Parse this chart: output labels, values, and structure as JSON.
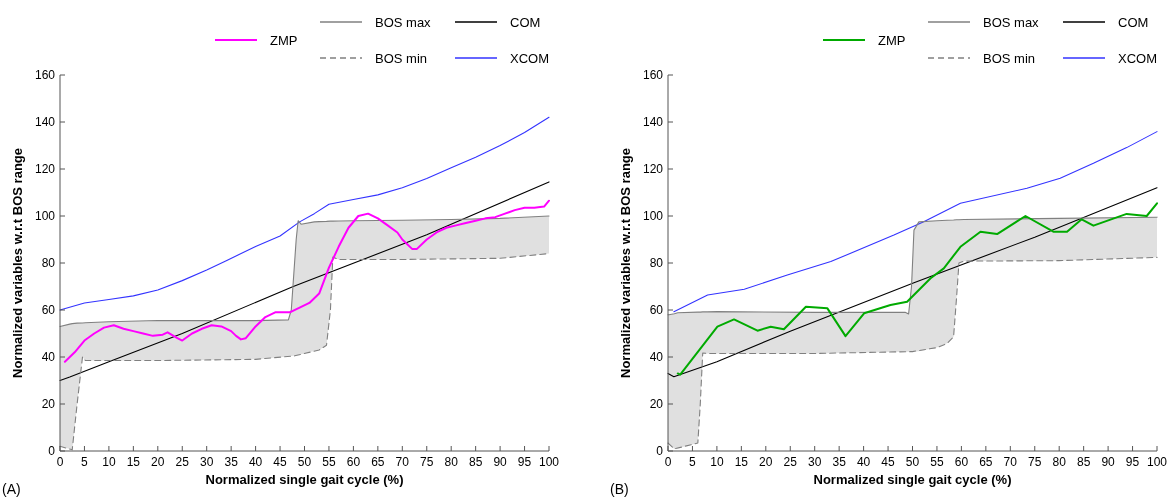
{
  "chart_data": [
    {
      "type": "line",
      "xlabel": "Normalized single gait cycle (%)",
      "ylabel": "Normalized variables w.r.t BOS range",
      "xlim": [
        0,
        100
      ],
      "ylim": [
        0,
        160
      ],
      "xticks": [
        0,
        5,
        10,
        15,
        20,
        25,
        30,
        35,
        40,
        45,
        50,
        55,
        60,
        65,
        70,
        75,
        80,
        85,
        90,
        95,
        100
      ],
      "yticks": [
        0,
        20,
        40,
        60,
        80,
        100,
        120,
        140,
        160
      ],
      "grid": false,
      "legend": "top",
      "annotations": [
        "(A)"
      ],
      "series": [
        {
          "name": "ZMP",
          "color": "#ff00ff",
          "x": [
            1,
            3,
            5,
            7,
            9,
            11,
            13,
            15,
            17,
            19,
            21,
            22,
            24,
            25,
            27,
            29,
            31,
            33,
            35,
            36,
            37,
            38,
            40,
            42,
            44,
            46,
            47,
            49,
            51,
            53,
            55,
            57,
            59,
            61,
            63,
            65,
            67,
            69,
            70,
            72,
            73,
            75,
            77,
            79,
            81,
            83,
            85,
            87,
            89,
            91,
            93,
            95,
            97,
            99,
            100
          ],
          "values": [
            38,
            42,
            47,
            50,
            52.5,
            53.5,
            52,
            51,
            50,
            49,
            49.5,
            50.5,
            48,
            47,
            50,
            52,
            53.5,
            53,
            51,
            49,
            47.5,
            48,
            53,
            57,
            59,
            59,
            59,
            61,
            63,
            67,
            78,
            87,
            95,
            100,
            101,
            99,
            96,
            93,
            90,
            86,
            86,
            90,
            93,
            95,
            96,
            97,
            98,
            99,
            99.5,
            101,
            102.5,
            103.5,
            103.5,
            104,
            106.5
          ]
        },
        {
          "name": "BOS max",
          "color": "#808080",
          "x": [
            0,
            2,
            2.5,
            3.5,
            4.6,
            5.2,
            10,
            20,
            30,
            40,
            46.7,
            47.3,
            48.3,
            48.7,
            49.3,
            52,
            53,
            54.5,
            55.3,
            55.8,
            57,
            60,
            70,
            80,
            90,
            100
          ],
          "values": [
            53,
            54,
            54.2,
            54.4,
            54.5,
            54.6,
            55,
            55.5,
            55.5,
            55.5,
            55.8,
            60,
            90,
            98,
            96.5,
            97.5,
            97.6,
            97.7,
            97.8,
            97.8,
            97.9,
            98,
            98.2,
            98.5,
            99,
            100
          ],
          "upper": [
            53,
            54,
            54.2,
            54.4,
            54.5,
            54.6,
            55,
            55.5,
            55.5,
            55.5,
            55.8,
            60,
            90,
            98,
            96.5,
            97.5,
            97.6,
            97.7,
            97.8,
            97.8,
            97.9,
            98,
            98.2,
            98.5,
            99,
            100
          ],
          "lower": [
            2,
            0.9,
            0.5,
            20,
            40,
            38.5,
            38.5,
            38.5,
            38.7,
            39,
            40.2,
            40.4,
            40.6,
            40.8,
            41.2,
            42.6,
            43,
            45,
            60,
            82.5,
            81.5,
            81.5,
            81.5,
            81.7,
            82,
            84
          ]
        },
        {
          "name": "BOS min",
          "color": "#808080",
          "line_style": "dashed",
          "x": [
            0,
            2.5,
            3.5,
            4.6,
            5.2,
            20,
            40,
            48,
            53,
            54.5,
            55.3,
            55.8,
            57,
            70,
            90,
            100
          ],
          "values": [
            2,
            0.5,
            20,
            40,
            38.5,
            38.5,
            39,
            40.5,
            43,
            45,
            60,
            82.5,
            81.5,
            81.5,
            82,
            84
          ]
        },
        {
          "name": "COM",
          "color": "#000000",
          "x": [
            0,
            2,
            10,
            25,
            47.7,
            75,
            100
          ],
          "values": [
            30,
            31.5,
            38,
            50,
            70,
            92,
            114.5
          ]
        },
        {
          "name": "XCOM",
          "color": "#3333ff",
          "x": [
            0,
            5,
            10,
            15,
            20,
            25,
            30,
            34,
            40,
            45,
            49,
            52,
            55,
            60,
            65,
            70,
            75,
            80,
            85,
            90,
            95,
            100
          ],
          "values": [
            60,
            63,
            64.5,
            66,
            68.5,
            72.5,
            77,
            81,
            87,
            91.5,
            97.5,
            101,
            105,
            107,
            109,
            112,
            116,
            120.5,
            125,
            130,
            135.5,
            142
          ]
        }
      ]
    },
    {
      "type": "line",
      "xlabel": "Normalized single gait cycle (%)",
      "ylabel": "Normalized variables w.r.t BOS range",
      "xlim": [
        0,
        100
      ],
      "ylim": [
        0,
        160
      ],
      "xticks": [
        0,
        5,
        10,
        15,
        20,
        25,
        30,
        35,
        40,
        45,
        50,
        55,
        60,
        65,
        70,
        75,
        80,
        85,
        90,
        95,
        100
      ],
      "yticks": [
        0,
        20,
        40,
        60,
        80,
        100,
        120,
        140,
        160
      ],
      "grid": false,
      "legend": "top",
      "annotations": [
        "(B)"
      ],
      "series": [
        {
          "name": "ZMP",
          "color": "#00aa00",
          "x": [
            2,
            2.5,
            10.1,
            13.5,
            18.3,
            21,
            23.7,
            28.2,
            32.6,
            36.3,
            40.1,
            45.5,
            48.9,
            53.7,
            56.4,
            59.8,
            63.9,
            67.3,
            73.1,
            78.8,
            81.6,
            84.6,
            87,
            93.8,
            97.9,
            100
          ],
          "values": [
            33,
            32.5,
            52.9,
            56,
            51.2,
            52.9,
            51.8,
            61.4,
            60.7,
            48.9,
            58.6,
            62.1,
            63.5,
            73.5,
            77.7,
            86.9,
            93.3,
            92.3,
            100,
            93.3,
            93.3,
            98.6,
            95.9,
            100.9,
            100,
            105.4
          ]
        },
        {
          "name": "BOS max",
          "color": "#808080",
          "x": [
            0,
            0.2,
            1.3,
            2,
            6.1,
            6.6,
            7.1,
            8,
            10,
            30,
            48.5,
            49.2,
            49.8,
            50.3,
            51.3,
            55,
            57.1,
            58.4,
            59,
            59.5,
            60.5,
            80,
            100
          ],
          "values": [
            58,
            58,
            58.4,
            58.8,
            59.1,
            59.1,
            59.2,
            59.2,
            59.3,
            59,
            59,
            58.3,
            70,
            94,
            97.5,
            98,
            98.2,
            98.3,
            98.4,
            98.4,
            98.5,
            99,
            99.5
          ],
          "upper": [
            58,
            58,
            58.4,
            58.8,
            59.1,
            59.1,
            59.2,
            59.2,
            59.3,
            59,
            59,
            58.3,
            70,
            94,
            97.5,
            98,
            98.2,
            98.3,
            98.4,
            98.4,
            98.5,
            99,
            99.5
          ],
          "lower": [
            3.4,
            3.4,
            0.9,
            1.2,
            3.4,
            20,
            41.7,
            41.5,
            41.5,
            41.5,
            42.2,
            42.2,
            42.3,
            42.3,
            42.5,
            44,
            45.8,
            48.6,
            65,
            80,
            80.8,
            81,
            82.4
          ]
        },
        {
          "name": "BOS min",
          "color": "#808080",
          "line_style": "dashed",
          "x": [
            0,
            1.3,
            6.1,
            6.6,
            7.1,
            8,
            30,
            50,
            55,
            57.1,
            58.4,
            59,
            59.5,
            60.5,
            80,
            100
          ],
          "values": [
            3.4,
            0.9,
            3.4,
            20,
            41.7,
            41.5,
            41.5,
            42.3,
            44,
            45.8,
            48.6,
            65,
            80,
            80.8,
            81,
            82.4
          ]
        },
        {
          "name": "COM",
          "color": "#000000",
          "x": [
            0,
            1.2,
            10,
            25,
            50.3,
            75,
            100
          ],
          "values": [
            33,
            31.6,
            38,
            51,
            71.6,
            91,
            112
          ]
        },
        {
          "name": "XCOM",
          "color": "#3333ff",
          "x": [
            1.2,
            8.1,
            15.6,
            24.4,
            33.3,
            46.2,
            52.3,
            59.8,
            73.4,
            80.2,
            87,
            93.8,
            100
          ],
          "values": [
            59.3,
            66.4,
            68.8,
            74.9,
            80.6,
            91.9,
            97.6,
            105.4,
            111.8,
            116.1,
            122.4,
            129.1,
            135.9
          ]
        }
      ]
    }
  ]
}
